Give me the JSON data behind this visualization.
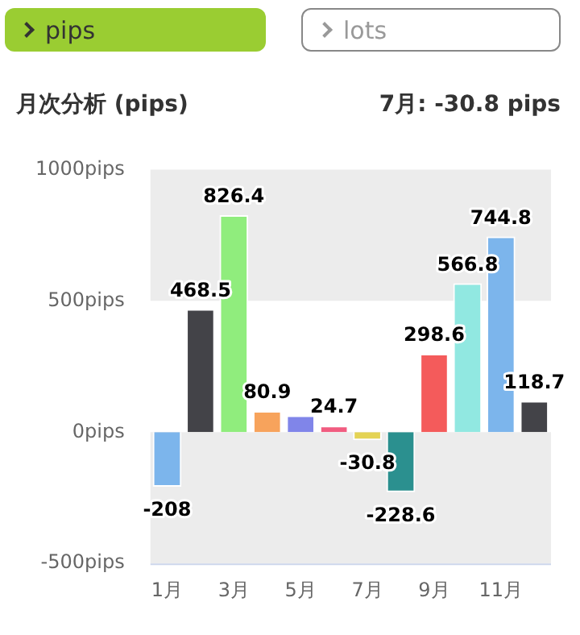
{
  "chart_data": {
    "type": "bar",
    "title": "月次分析 (pips)",
    "subtitle": "7月: -30.8 pips",
    "annotations": [
      "pips",
      "lots"
    ],
    "categories": [
      "1月",
      null,
      "3月",
      null,
      "5月",
      null,
      "7月",
      null,
      "9月",
      null,
      "11月",
      null
    ],
    "values": [
      -208,
      468.5,
      826.4,
      80.9,
      64,
      24.7,
      -30.8,
      -228.6,
      298.6,
      566.8,
      744.8,
      118.7
    ],
    "colors": [
      "#7cb5ec",
      "#434348",
      "#90ed7d",
      "#f7a35c",
      "#8085e9",
      "#f15c80",
      "#e4d354",
      "#2b908f",
      "#f45b5b",
      "#91e8e1",
      "#7cb5ec",
      "#434348"
    ],
    "value_labels": [
      "-208",
      "468.5",
      "826.4",
      "80.9",
      null,
      "24.7",
      "-30.8",
      "-228.6",
      "298.6",
      "566.8",
      "744.8",
      "118.7"
    ],
    "ylim": [
      -500,
      1000
    ],
    "yticks": [
      {
        "value": -500,
        "label": "-500pips"
      },
      {
        "value": 0,
        "label": "0pips"
      },
      {
        "value": 500,
        "label": "500pips"
      },
      {
        "value": 1000,
        "label": "1000pips"
      }
    ],
    "bands": [
      {
        "axis": "y",
        "from": 500,
        "to": 1000,
        "color": "#ececec"
      },
      {
        "axis": "y",
        "from": -500,
        "to": 0,
        "color": "#ececec"
      }
    ],
    "grid": false,
    "legend": false
  }
}
